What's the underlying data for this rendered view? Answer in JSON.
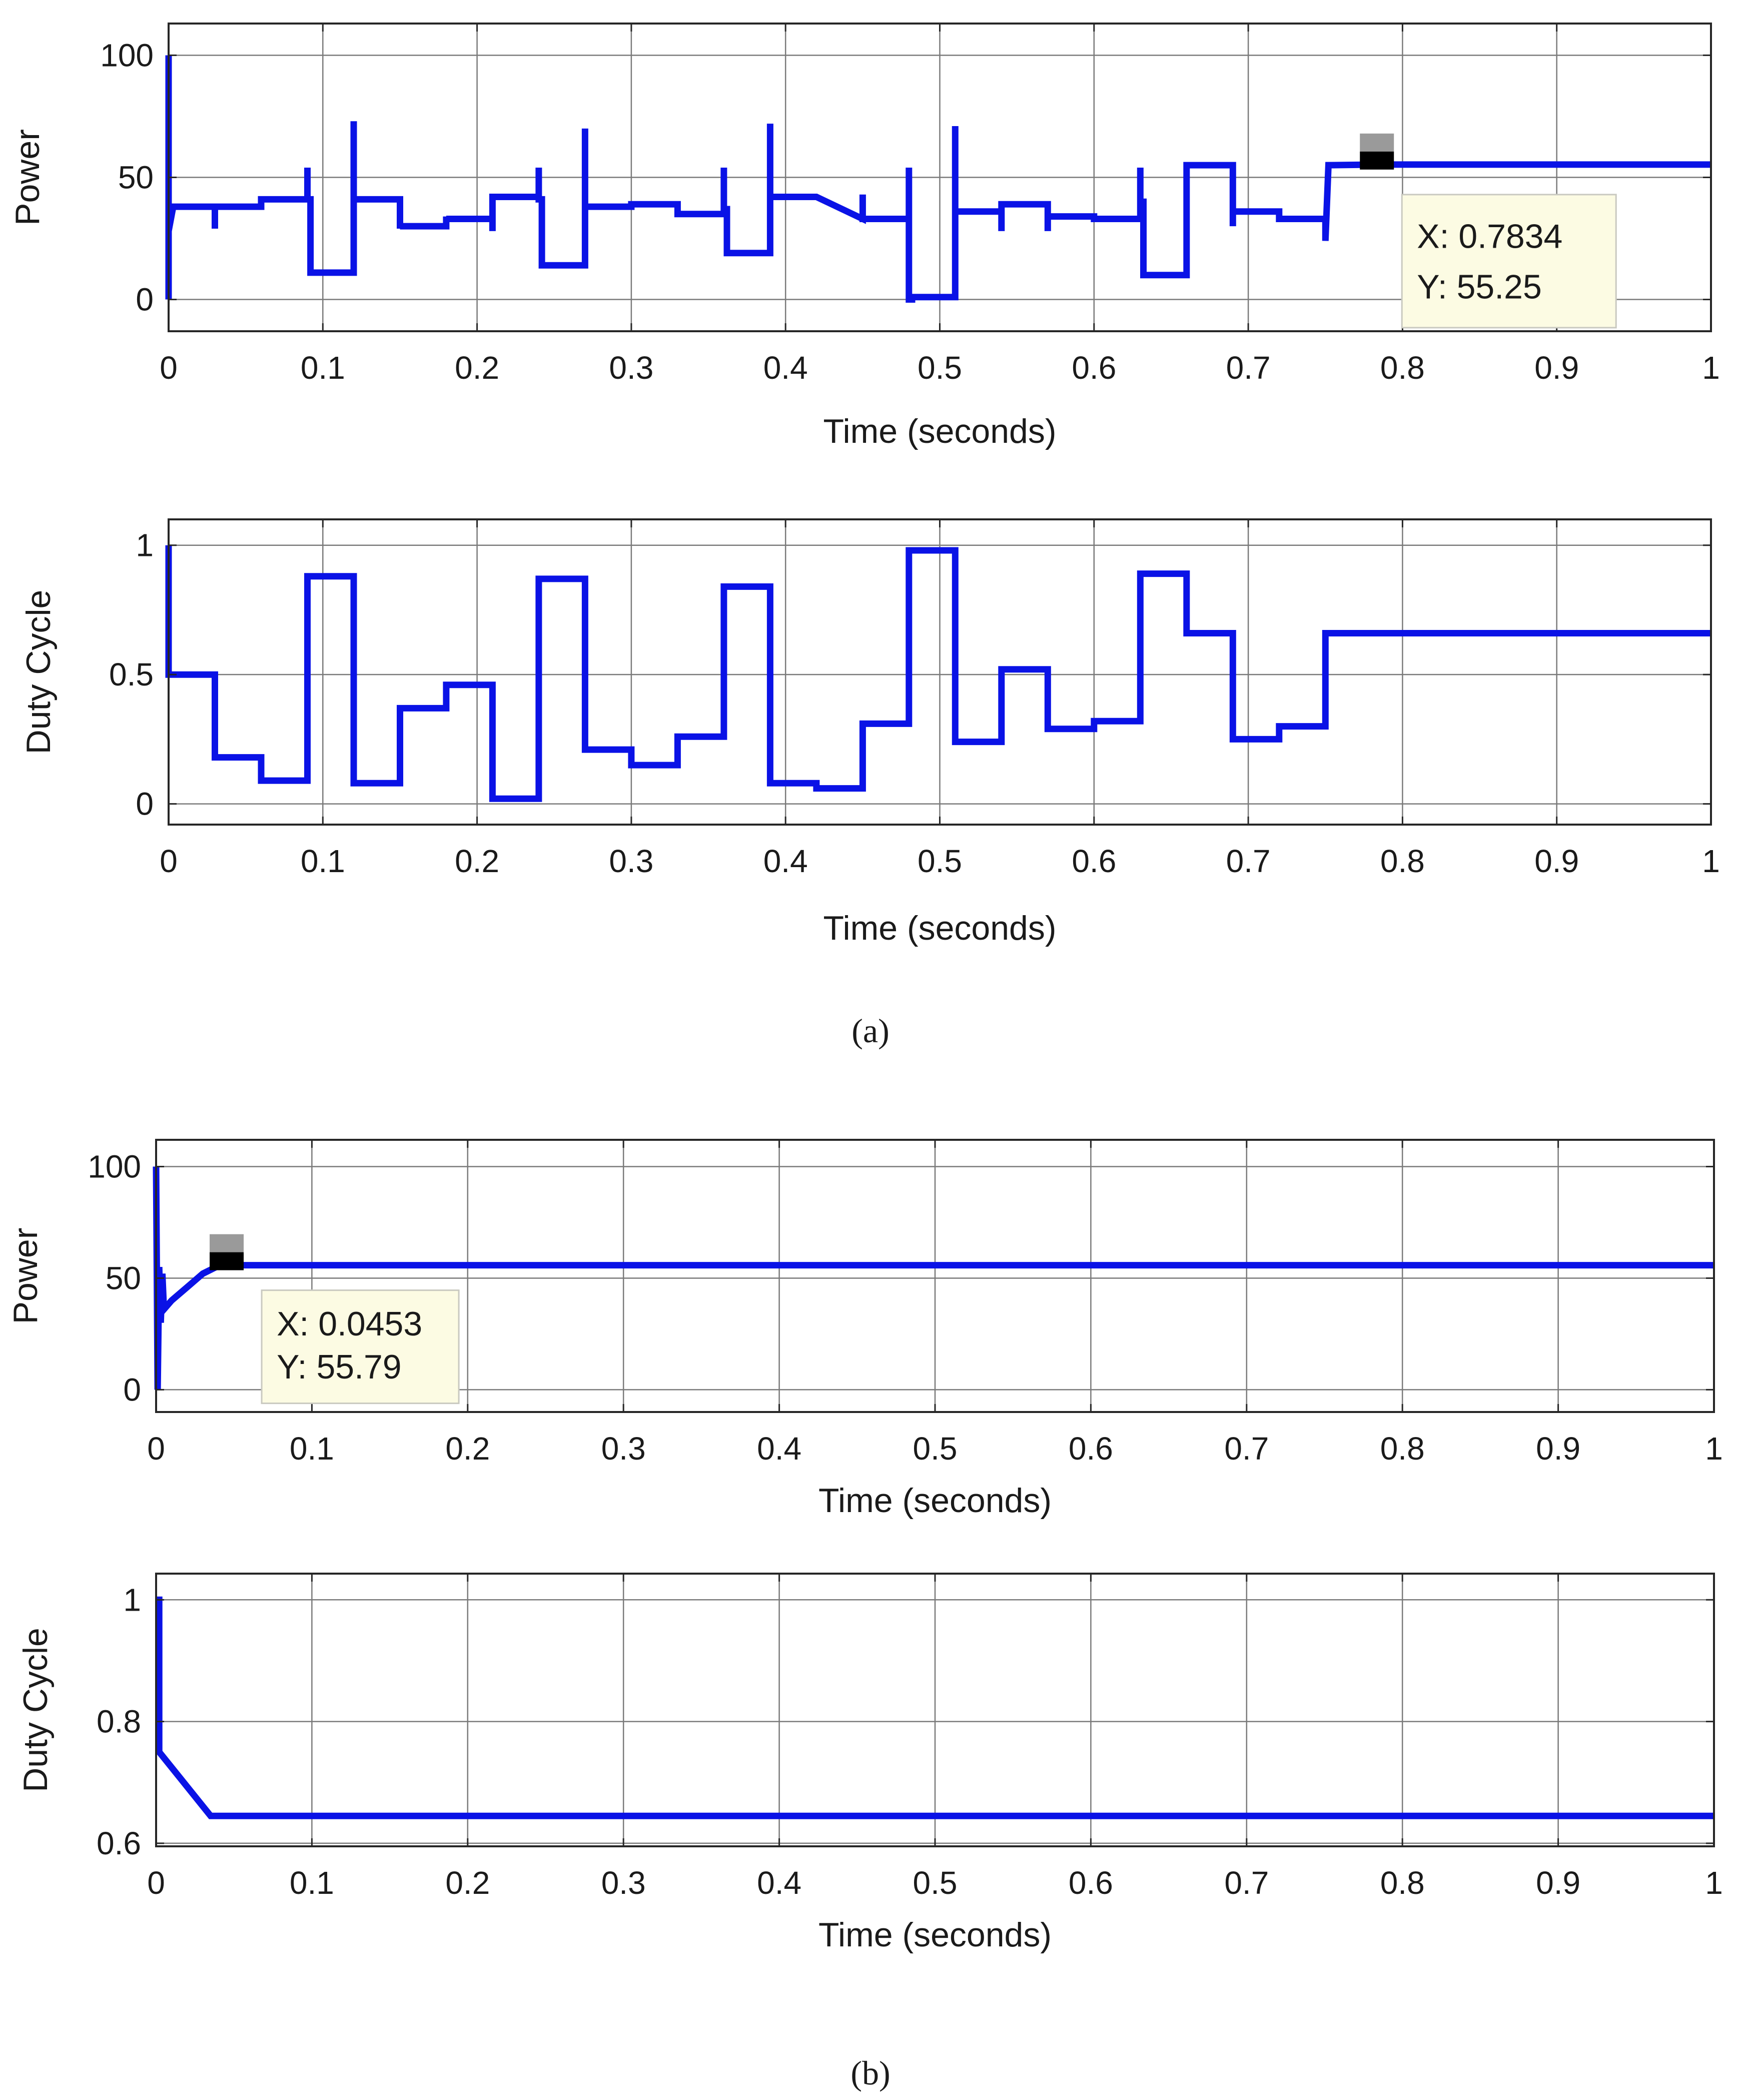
{
  "chart_data": [
    {
      "id": "a_power",
      "type": "line",
      "panel": "a",
      "xlabel": "Time (seconds)",
      "ylabel": "Power",
      "xlim": [
        0,
        1
      ],
      "ylim": [
        -13,
        113
      ],
      "xticks": [
        0,
        0.1,
        0.2,
        0.3,
        0.4,
        0.5,
        0.6,
        0.7,
        0.8,
        0.9,
        1
      ],
      "xtick_labels": [
        "0",
        "0.1",
        "0.2",
        "0.3",
        "0.4",
        "0.5",
        "0.6",
        "0.7",
        "0.8",
        "0.9",
        "1"
      ],
      "yticks": [
        0,
        50,
        100
      ],
      "ytick_labels": [
        "0",
        "50",
        "100"
      ],
      "grid": true,
      "series": [
        {
          "name": "Power",
          "color": "#0a12e6",
          "x": [
            0,
            0,
            0,
            0.003,
            0.03,
            0.03,
            0.03,
            0.03,
            0.03,
            0.06,
            0.06,
            0.09,
            0.09,
            0.09,
            0.092,
            0.092,
            0.12,
            0.12,
            0.12,
            0.12,
            0.15,
            0.15,
            0.15,
            0.15,
            0.18,
            0.18,
            0.18,
            0.18,
            0.21,
            0.21,
            0.21,
            0.21,
            0.24,
            0.24,
            0.24,
            0.242,
            0.242,
            0.27,
            0.27,
            0.27,
            0.27,
            0.3,
            0.3,
            0.33,
            0.33,
            0.36,
            0.36,
            0.36,
            0.362,
            0.362,
            0.39,
            0.39,
            0.39,
            0.39,
            0.42,
            0.42,
            0.45,
            0.45,
            0.45,
            0.45,
            0.48,
            0.48,
            0.48,
            0.482,
            0.482,
            0.51,
            0.51,
            0.51,
            0.51,
            0.54,
            0.54,
            0.54,
            0.54,
            0.57,
            0.57,
            0.57,
            0.57,
            0.6,
            0.6,
            0.6,
            0.63,
            0.63,
            0.63,
            0.632,
            0.632,
            0.66,
            0.66,
            0.66,
            0.69,
            0.69,
            0.69,
            0.69,
            0.72,
            0.72,
            0.75,
            0.75,
            0.75,
            0.752,
            0.752,
            0.7834,
            1.0
          ],
          "y": [
            100,
            0,
            28,
            38,
            38,
            29,
            38,
            38,
            38,
            38,
            41,
            41,
            54,
            41,
            41,
            11,
            11,
            73,
            41,
            41,
            41,
            29,
            30,
            30,
            30,
            34,
            33,
            33,
            33,
            28,
            42,
            42,
            42,
            54,
            41,
            41,
            14,
            14,
            70,
            38,
            38,
            38,
            39,
            39,
            35,
            35,
            54,
            37,
            37,
            19,
            19,
            72,
            42,
            42,
            42,
            42,
            33,
            33,
            43,
            33,
            33,
            54,
            0,
            0,
            1,
            1,
            71,
            36,
            36,
            36,
            28,
            39,
            39,
            39,
            28,
            34,
            34,
            34,
            33,
            33,
            33,
            54,
            40,
            40,
            10,
            10,
            55,
            55,
            55,
            30,
            36,
            36,
            36,
            33,
            33,
            33,
            24,
            55,
            55,
            55.25,
            55.25
          ]
        }
      ],
      "datatip": {
        "x_value": 0.7834,
        "y_value": 55.25,
        "x_text": "X: 0.7834",
        "y_text": "Y: 55.25"
      }
    },
    {
      "id": "a_duty",
      "type": "line",
      "panel": "a",
      "xlabel": "Time (seconds)",
      "ylabel": "Duty Cycle",
      "xlim": [
        0,
        1
      ],
      "ylim": [
        -0.08,
        1.1
      ],
      "xticks": [
        0,
        0.1,
        0.2,
        0.3,
        0.4,
        0.5,
        0.6,
        0.7,
        0.8,
        0.9,
        1
      ],
      "xtick_labels": [
        "0",
        "0.1",
        "0.2",
        "0.3",
        "0.4",
        "0.5",
        "0.6",
        "0.7",
        "0.8",
        "0.9",
        "1"
      ],
      "yticks": [
        0,
        0.5,
        1
      ],
      "ytick_labels": [
        "0",
        "0.5",
        "1"
      ],
      "grid": true,
      "series": [
        {
          "name": "Duty Cycle",
          "color": "#0a12e6",
          "x": [
            0,
            0,
            0.03,
            0.03,
            0.06,
            0.06,
            0.09,
            0.09,
            0.12,
            0.12,
            0.15,
            0.15,
            0.18,
            0.18,
            0.21,
            0.21,
            0.24,
            0.24,
            0.27,
            0.27,
            0.3,
            0.3,
            0.33,
            0.33,
            0.36,
            0.36,
            0.39,
            0.39,
            0.42,
            0.42,
            0.45,
            0.45,
            0.48,
            0.48,
            0.51,
            0.51,
            0.54,
            0.54,
            0.57,
            0.57,
            0.6,
            0.6,
            0.63,
            0.63,
            0.66,
            0.66,
            0.69,
            0.69,
            0.72,
            0.72,
            0.75,
            0.75,
            1.0
          ],
          "y": [
            1.0,
            0.5,
            0.5,
            0.18,
            0.18,
            0.09,
            0.09,
            0.88,
            0.88,
            0.08,
            0.08,
            0.37,
            0.37,
            0.46,
            0.46,
            0.02,
            0.02,
            0.87,
            0.87,
            0.21,
            0.21,
            0.15,
            0.15,
            0.26,
            0.26,
            0.84,
            0.84,
            0.08,
            0.08,
            0.06,
            0.06,
            0.31,
            0.31,
            0.98,
            0.98,
            0.24,
            0.24,
            0.52,
            0.52,
            0.29,
            0.29,
            0.32,
            0.32,
            0.89,
            0.89,
            0.66,
            0.66,
            0.25,
            0.25,
            0.3,
            0.3,
            0.66,
            0.66
          ]
        }
      ]
    },
    {
      "id": "b_power",
      "type": "line",
      "panel": "b",
      "xlabel": "Time (seconds)",
      "ylabel": "Power",
      "xlim": [
        0,
        1
      ],
      "ylim": [
        -10,
        112
      ],
      "xticks": [
        0,
        0.1,
        0.2,
        0.3,
        0.4,
        0.5,
        0.6,
        0.7,
        0.8,
        0.9,
        1
      ],
      "xtick_labels": [
        "0",
        "0.1",
        "0.2",
        "0.3",
        "0.4",
        "0.5",
        "0.6",
        "0.7",
        "0.8",
        "0.9",
        "1"
      ],
      "yticks": [
        0,
        50,
        100
      ],
      "ytick_labels": [
        "0",
        "50",
        "100"
      ],
      "grid": true,
      "series": [
        {
          "name": "Power",
          "color": "#0a12e6",
          "x": [
            0,
            0.001,
            0.002,
            0.003,
            0.004,
            0.005,
            0.01,
            0.02,
            0.03,
            0.04,
            0.0453,
            1.0
          ],
          "y": [
            100,
            0,
            55,
            30,
            52,
            36,
            40,
            46,
            52,
            55.5,
            55.79,
            55.79
          ]
        }
      ],
      "datatip": {
        "x_value": 0.0453,
        "y_value": 55.79,
        "x_text": "X: 0.0453",
        "y_text": "Y: 55.79"
      }
    },
    {
      "id": "b_duty",
      "type": "line",
      "panel": "b",
      "xlabel": "Time (seconds)",
      "ylabel": "Duty Cycle",
      "xlim": [
        0,
        1
      ],
      "ylim": [
        0.595,
        1.043
      ],
      "xticks": [
        0,
        0.1,
        0.2,
        0.3,
        0.4,
        0.5,
        0.6,
        0.7,
        0.8,
        0.9,
        1
      ],
      "xtick_labels": [
        "0",
        "0.1",
        "0.2",
        "0.3",
        "0.4",
        "0.5",
        "0.6",
        "0.7",
        "0.8",
        "0.9",
        "1"
      ],
      "yticks": [
        0.6,
        0.8,
        1
      ],
      "ytick_labels": [
        "0.6",
        "0.8",
        "1"
      ],
      "grid": true,
      "series": [
        {
          "name": "Duty Cycle",
          "color": "#0a12e6",
          "x": [
            0,
            0.002,
            0.002,
            0.035,
            1.0
          ],
          "y": [
            1.0,
            1.0,
            0.75,
            0.645,
            0.645
          ]
        }
      ]
    }
  ],
  "captions": {
    "a": "(a)",
    "b": "(b)"
  }
}
